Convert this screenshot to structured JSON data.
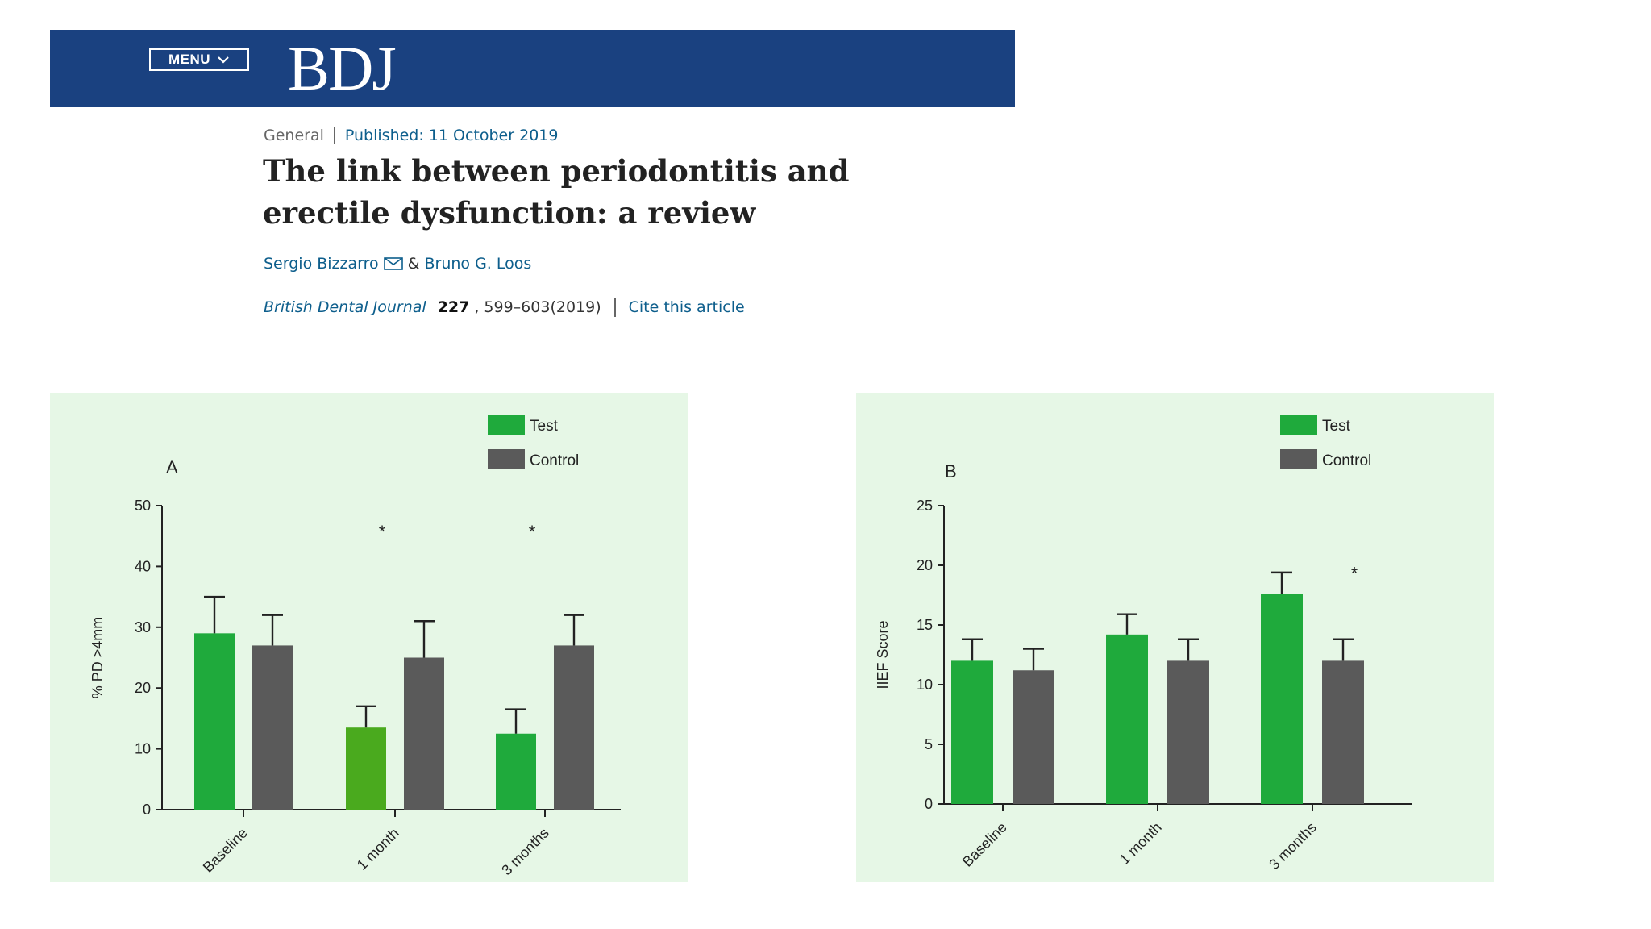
{
  "header": {
    "menu_label": "MENU",
    "logo": "BDJ",
    "bg_color": "#1a4180"
  },
  "article": {
    "category": "General",
    "published": "Published: 11 October 2019",
    "title_line1": "The link between periodontitis and",
    "title_line2": "erectile dysfunction: a review",
    "author1": "Sergio Bizzarro",
    "author_sep": "&",
    "author2": "Bruno G. Loos",
    "journal": "British Dental Journal",
    "volume": "227",
    "pages": ", 599–603(2019)",
    "cite": "Cite this article"
  },
  "colors": {
    "test": "#1faa3c",
    "test_alt": "#4aaa1e",
    "control": "#5a5a5a",
    "panel_bg": "#e6f7e6"
  },
  "chart_data": [
    {
      "type": "bar",
      "panel_label": "A",
      "categories": [
        "Baseline",
        "1 month",
        "3 months"
      ],
      "series": [
        {
          "name": "Test",
          "values": [
            29,
            13.5,
            12.5
          ],
          "errors": [
            6,
            3.5,
            4
          ]
        },
        {
          "name": "Control",
          "values": [
            27,
            25,
            27
          ],
          "errors": [
            5,
            6,
            5
          ]
        }
      ],
      "significance": [
        "",
        "*",
        "*"
      ],
      "ylabel": "% PD >4mm",
      "ylim": [
        0,
        50
      ],
      "yticks": [
        0,
        10,
        20,
        30,
        40,
        50
      ],
      "legend": "top-right"
    },
    {
      "type": "bar",
      "panel_label": "B",
      "categories": [
        "Baseline",
        "1 month",
        "3 months"
      ],
      "series": [
        {
          "name": "Test",
          "values": [
            12,
            14.2,
            17.6
          ],
          "errors": [
            1.8,
            1.7,
            1.8
          ]
        },
        {
          "name": "Control",
          "values": [
            11.2,
            12,
            12
          ],
          "errors": [
            1.8,
            1.8,
            1.8
          ]
        }
      ],
      "significance": [
        "",
        "",
        "*"
      ],
      "ylabel": "IIEF Score",
      "ylim": [
        0,
        25
      ],
      "yticks": [
        0,
        5,
        10,
        15,
        20,
        25
      ],
      "legend": "top-right"
    }
  ]
}
